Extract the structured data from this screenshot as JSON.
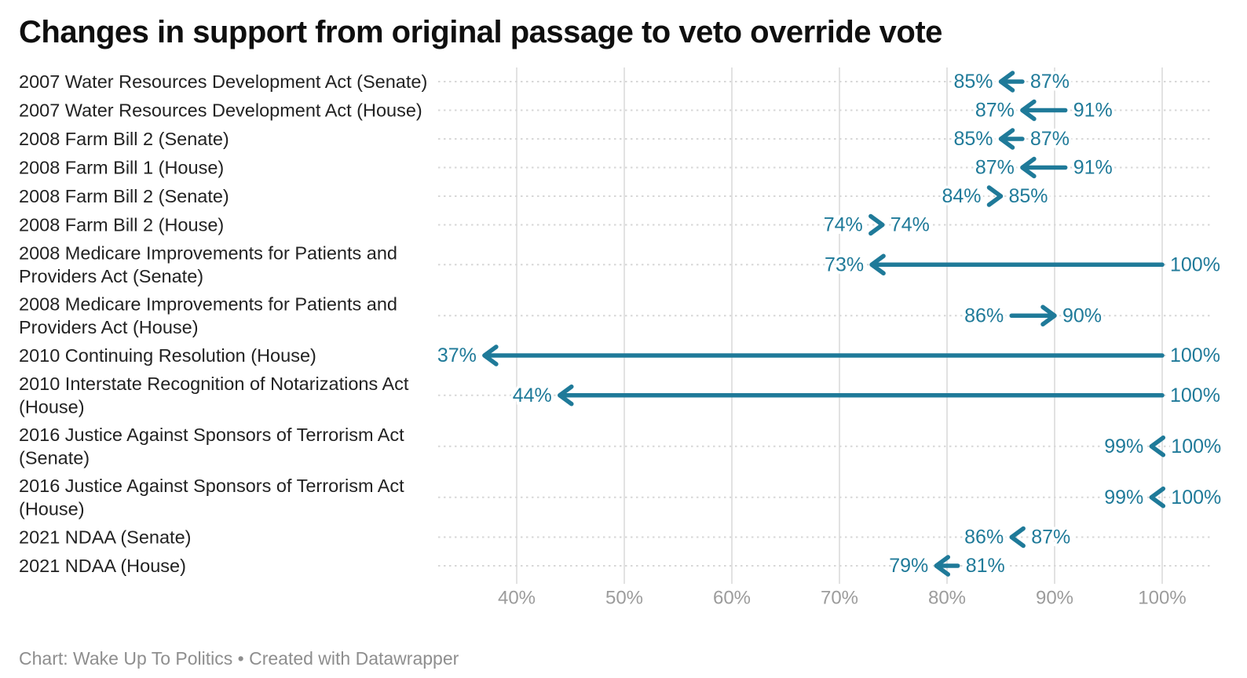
{
  "title": "Changes in support from original passage to veto override vote",
  "footer": "Chart: Wake Up To Politics • Created with Datawrapper",
  "chart_data": {
    "type": "arrow",
    "title": "Changes in support from original passage to veto override vote",
    "xlabel": "",
    "ylabel": "",
    "unit": "%",
    "x_range": [
      33,
      106
    ],
    "x_ticks": [
      40,
      50,
      60,
      70,
      80,
      90,
      100
    ],
    "x_tick_labels": [
      "40%",
      "50%",
      "60%",
      "70%",
      "80%",
      "90%",
      "100%"
    ],
    "grid": "vertical",
    "legend": "none",
    "colors": {
      "arrow": "#1f7a99",
      "value_label": "#1f7a99",
      "row_label": "#222222",
      "tick_label": "#9c9c9c",
      "grid_line": "#e2e2e2",
      "dotted_line": "#d7d7d7",
      "title": "#0f0f0f",
      "footer": "#8e8e8e",
      "background": "#ffffff"
    },
    "rows": [
      {
        "label": "2007 Water Resources Development Act (Senate)",
        "lines": [
          "2007 Water Resources Development Act (Senate)"
        ],
        "from": 87,
        "to": 85,
        "from_label": "87%",
        "to_label": "85%"
      },
      {
        "label": "2007 Water Resources Development Act (House)",
        "lines": [
          "2007 Water Resources Development Act (House)"
        ],
        "from": 91,
        "to": 87,
        "from_label": "91%",
        "to_label": "87%"
      },
      {
        "label": "2008 Farm Bill 2 (Senate)",
        "lines": [
          "2008 Farm Bill 2 (Senate)"
        ],
        "from": 87,
        "to": 85,
        "from_label": "87%",
        "to_label": "85%"
      },
      {
        "label": "2008 Farm Bill 1 (House)",
        "lines": [
          "2008 Farm Bill 1 (House)"
        ],
        "from": 91,
        "to": 87,
        "from_label": "91%",
        "to_label": "87%"
      },
      {
        "label": "2008 Farm Bill 2 (Senate)",
        "lines": [
          "2008 Farm Bill 2 (Senate)"
        ],
        "from": 84,
        "to": 85,
        "from_label": "84%",
        "to_label": "85%"
      },
      {
        "label": "2008 Farm Bill 2 (House)",
        "lines": [
          "2008 Farm Bill 2 (House)"
        ],
        "from": 74,
        "to": 74,
        "from_label": "74%",
        "to_label": "74%"
      },
      {
        "label": "2008 Medicare Improvements for Patients and Providers Act (Senate)",
        "lines": [
          "2008 Medicare Improvements for Patients and",
          "Providers Act (Senate)"
        ],
        "from": 100,
        "to": 73,
        "from_label": "100%",
        "to_label": "73%"
      },
      {
        "label": "2008 Medicare Improvements for Patients and Providers Act (House)",
        "lines": [
          "2008 Medicare Improvements for Patients and",
          "Providers Act (House)"
        ],
        "from": 86,
        "to": 90,
        "from_label": "86%",
        "to_label": "90%"
      },
      {
        "label": "2010 Continuing Resolution (House)",
        "lines": [
          "2010 Continuing Resolution (House)"
        ],
        "from": 100,
        "to": 37,
        "from_label": "100%",
        "to_label": "37%"
      },
      {
        "label": "2010 Interstate Recognition of Notarizations Act (House)",
        "lines": [
          "2010 Interstate Recognition of Notarizations Act",
          "(House)"
        ],
        "from": 100,
        "to": 44,
        "from_label": "100%",
        "to_label": "44%"
      },
      {
        "label": "2016 Justice Against Sponsors of Terrorism Act (Senate)",
        "lines": [
          "2016 Justice Against Sponsors of Terrorism Act",
          "(Senate)"
        ],
        "from": 100,
        "to": 99,
        "from_label": "100%",
        "to_label": "99%"
      },
      {
        "label": "2016 Justice Against Sponsors of Terrorism Act (House)",
        "lines": [
          "2016 Justice Against Sponsors of Terrorism Act",
          "(House)"
        ],
        "from": 100,
        "to": 99,
        "from_label": "100%",
        "to_label": "99%"
      },
      {
        "label": "2021 NDAA (Senate)",
        "lines": [
          "2021 NDAA (Senate)"
        ],
        "from": 87,
        "to": 86,
        "from_label": "87%",
        "to_label": "86%"
      },
      {
        "label": "2021 NDAA (House)",
        "lines": [
          "2021 NDAA (House)"
        ],
        "from": 81,
        "to": 79,
        "from_label": "81%",
        "to_label": "79%"
      }
    ]
  }
}
